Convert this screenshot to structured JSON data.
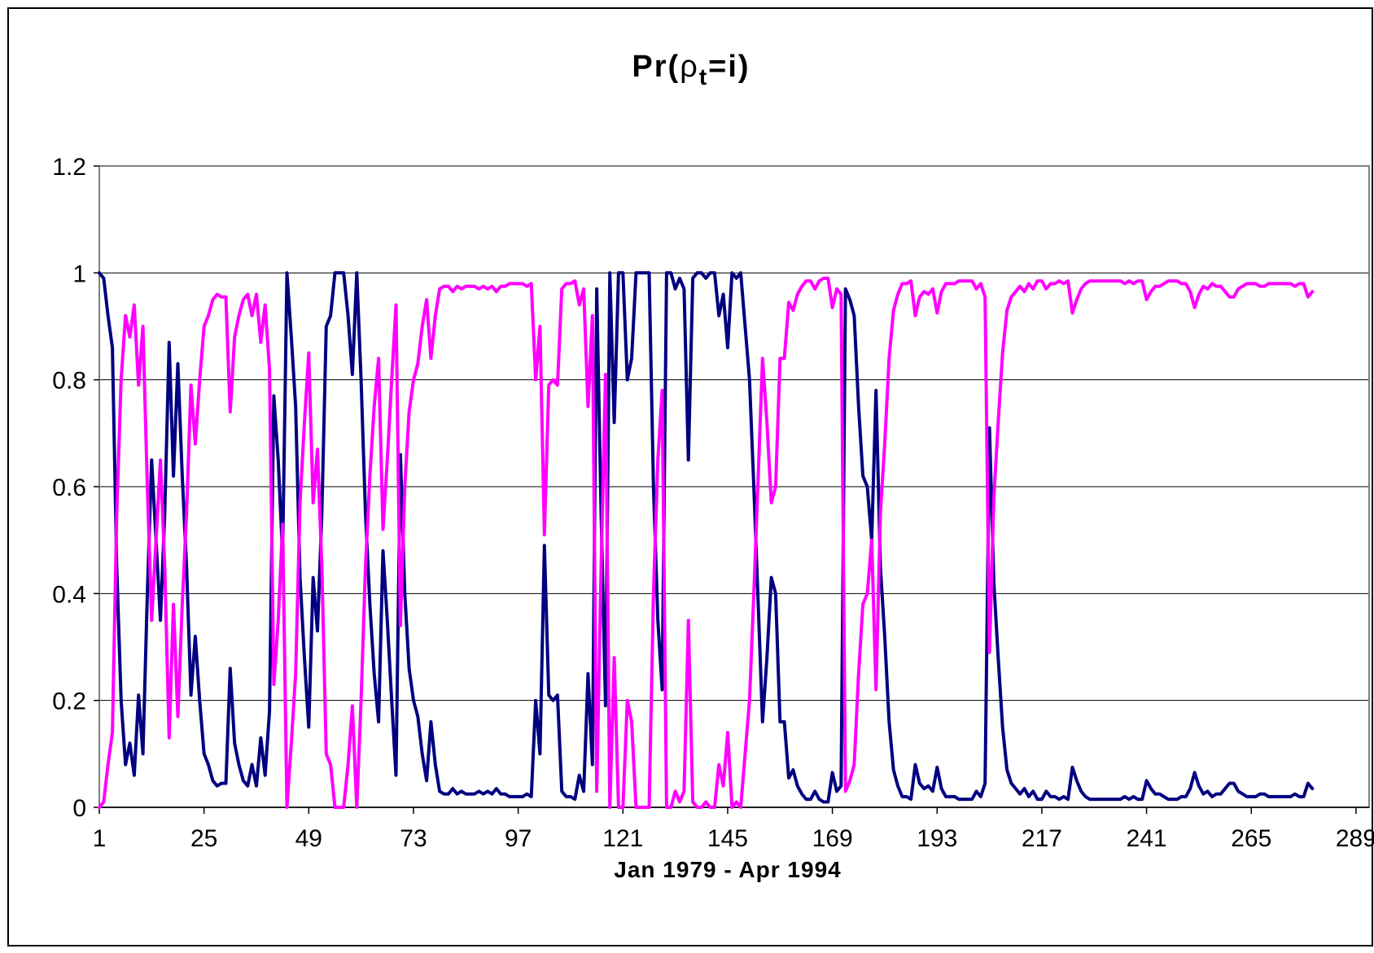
{
  "chart_data": {
    "type": "line",
    "title": {
      "main": "Pr(",
      "greek": "ρ",
      "sub": "t",
      "rest": "=i)"
    },
    "xlabel": "Jan 1979 - Apr 1994",
    "ylabel": "",
    "xlim": [
      1,
      292
    ],
    "ylim": [
      0,
      1.2
    ],
    "x_ticks": [
      1,
      25,
      49,
      73,
      97,
      121,
      145,
      169,
      193,
      217,
      241,
      265,
      289
    ],
    "y_ticks": [
      0,
      0.2,
      0.4,
      0.6,
      0.8,
      1,
      1.2
    ],
    "y_tick_labels": [
      "0",
      "0.2",
      "0.4",
      "0.6",
      "0.8",
      "1",
      "1.2"
    ],
    "grid": {
      "horizontal": true,
      "vertical": false
    },
    "legend": "none",
    "colors": {
      "series_1": "#000080",
      "series_2": "#ff00ff",
      "grid": "#000000",
      "frame": "#000000"
    },
    "x_start": 1,
    "series": [
      {
        "color": "#000080",
        "values": [
          1.0,
          0.99,
          0.92,
          0.86,
          0.45,
          0.2,
          0.08,
          0.12,
          0.06,
          0.21,
          0.1,
          0.4,
          0.65,
          0.5,
          0.35,
          0.55,
          0.87,
          0.62,
          0.83,
          0.62,
          0.45,
          0.21,
          0.32,
          0.2,
          0.1,
          0.08,
          0.05,
          0.04,
          0.045,
          0.045,
          0.26,
          0.12,
          0.08,
          0.05,
          0.04,
          0.08,
          0.04,
          0.13,
          0.06,
          0.18,
          0.77,
          0.65,
          0.47,
          1.0,
          0.88,
          0.75,
          0.43,
          0.28,
          0.15,
          0.43,
          0.33,
          0.55,
          0.9,
          0.92,
          1.0,
          1.0,
          1.0,
          0.92,
          0.81,
          1.0,
          0.8,
          0.55,
          0.38,
          0.25,
          0.16,
          0.48,
          0.35,
          0.2,
          0.06,
          0.66,
          0.4,
          0.26,
          0.2,
          0.17,
          0.1,
          0.05,
          0.16,
          0.08,
          0.03,
          0.025,
          0.025,
          0.035,
          0.025,
          0.03,
          0.025,
          0.025,
          0.025,
          0.03,
          0.025,
          0.03,
          0.025,
          0.035,
          0.025,
          0.025,
          0.02,
          0.02,
          0.02,
          0.02,
          0.025,
          0.02,
          0.2,
          0.1,
          0.49,
          0.21,
          0.2,
          0.21,
          0.03,
          0.02,
          0.02,
          0.015,
          0.06,
          0.03,
          0.25,
          0.08,
          0.97,
          0.55,
          0.19,
          1.0,
          0.72,
          1.0,
          1.0,
          0.8,
          0.84,
          1.0,
          1.0,
          1.0,
          1.0,
          0.6,
          0.35,
          0.22,
          1.0,
          1.0,
          0.97,
          0.99,
          0.97,
          0.65,
          0.99,
          1.0,
          1.0,
          0.99,
          1.0,
          1.0,
          0.92,
          0.96,
          0.86,
          1.0,
          0.99,
          1.0,
          0.9,
          0.8,
          0.6,
          0.38,
          0.16,
          0.28,
          0.43,
          0.4,
          0.16,
          0.16,
          0.055,
          0.07,
          0.04,
          0.025,
          0.015,
          0.015,
          0.03,
          0.015,
          0.01,
          0.01,
          0.065,
          0.03,
          0.04,
          0.97,
          0.95,
          0.92,
          0.75,
          0.62,
          0.6,
          0.5,
          0.78,
          0.45,
          0.32,
          0.16,
          0.07,
          0.04,
          0.02,
          0.02,
          0.015,
          0.08,
          0.045,
          0.035,
          0.04,
          0.03,
          0.075,
          0.035,
          0.02,
          0.02,
          0.02,
          0.015,
          0.015,
          0.015,
          0.015,
          0.03,
          0.02,
          0.045,
          0.71,
          0.42,
          0.28,
          0.15,
          0.07,
          0.045,
          0.035,
          0.025,
          0.035,
          0.02,
          0.03,
          0.015,
          0.015,
          0.03,
          0.02,
          0.02,
          0.015,
          0.02,
          0.015,
          0.075,
          0.05,
          0.03,
          0.02,
          0.015,
          0.015,
          0.015,
          0.015,
          0.015,
          0.015,
          0.015,
          0.015,
          0.02,
          0.015,
          0.02,
          0.015,
          0.015,
          0.05,
          0.035,
          0.025,
          0.025,
          0.02,
          0.015,
          0.015,
          0.015,
          0.02,
          0.02,
          0.035,
          0.065,
          0.04,
          0.025,
          0.03,
          0.02,
          0.025,
          0.025,
          0.035,
          0.045,
          0.045,
          0.03,
          0.025,
          0.02,
          0.02,
          0.02,
          0.025,
          0.025,
          0.02,
          0.02,
          0.02,
          0.02,
          0.02,
          0.02,
          0.025,
          0.02,
          0.02,
          0.045,
          0.035
        ]
      },
      {
        "color": "#ff00ff",
        "values": [
          0.0,
          0.01,
          0.08,
          0.14,
          0.55,
          0.8,
          0.92,
          0.88,
          0.94,
          0.79,
          0.9,
          0.6,
          0.35,
          0.5,
          0.65,
          0.45,
          0.13,
          0.38,
          0.17,
          0.38,
          0.55,
          0.79,
          0.68,
          0.8,
          0.9,
          0.92,
          0.95,
          0.96,
          0.955,
          0.955,
          0.74,
          0.88,
          0.92,
          0.95,
          0.96,
          0.92,
          0.96,
          0.87,
          0.94,
          0.82,
          0.23,
          0.35,
          0.53,
          0.0,
          0.12,
          0.25,
          0.57,
          0.72,
          0.85,
          0.57,
          0.67,
          0.45,
          0.1,
          0.08,
          0.0,
          0.0,
          0.0,
          0.08,
          0.19,
          0.0,
          0.2,
          0.45,
          0.62,
          0.75,
          0.84,
          0.52,
          0.65,
          0.8,
          0.94,
          0.34,
          0.6,
          0.74,
          0.8,
          0.83,
          0.9,
          0.95,
          0.84,
          0.92,
          0.97,
          0.975,
          0.975,
          0.965,
          0.975,
          0.97,
          0.975,
          0.975,
          0.975,
          0.97,
          0.975,
          0.97,
          0.975,
          0.965,
          0.975,
          0.975,
          0.98,
          0.98,
          0.98,
          0.98,
          0.975,
          0.98,
          0.8,
          0.9,
          0.51,
          0.79,
          0.8,
          0.79,
          0.97,
          0.98,
          0.98,
          0.985,
          0.94,
          0.97,
          0.75,
          0.92,
          0.03,
          0.45,
          0.81,
          0.0,
          0.28,
          0.0,
          0.0,
          0.2,
          0.16,
          0.0,
          0.0,
          0.0,
          0.0,
          0.4,
          0.65,
          0.78,
          0.0,
          0.0,
          0.03,
          0.01,
          0.03,
          0.35,
          0.01,
          0.0,
          0.0,
          0.01,
          0.0,
          0.0,
          0.08,
          0.04,
          0.14,
          0.0,
          0.01,
          0.0,
          0.1,
          0.2,
          0.4,
          0.62,
          0.84,
          0.72,
          0.57,
          0.6,
          0.84,
          0.84,
          0.945,
          0.93,
          0.96,
          0.975,
          0.985,
          0.985,
          0.97,
          0.985,
          0.99,
          0.99,
          0.935,
          0.97,
          0.96,
          0.03,
          0.05,
          0.08,
          0.25,
          0.38,
          0.4,
          0.5,
          0.22,
          0.55,
          0.68,
          0.84,
          0.93,
          0.96,
          0.98,
          0.98,
          0.985,
          0.92,
          0.955,
          0.965,
          0.96,
          0.97,
          0.925,
          0.965,
          0.98,
          0.98,
          0.98,
          0.985,
          0.985,
          0.985,
          0.985,
          0.97,
          0.98,
          0.955,
          0.29,
          0.58,
          0.72,
          0.85,
          0.93,
          0.955,
          0.965,
          0.975,
          0.965,
          0.98,
          0.97,
          0.985,
          0.985,
          0.97,
          0.98,
          0.98,
          0.985,
          0.98,
          0.985,
          0.925,
          0.95,
          0.97,
          0.98,
          0.985,
          0.985,
          0.985,
          0.985,
          0.985,
          0.985,
          0.985,
          0.985,
          0.98,
          0.985,
          0.98,
          0.985,
          0.985,
          0.95,
          0.965,
          0.975,
          0.975,
          0.98,
          0.985,
          0.985,
          0.985,
          0.98,
          0.98,
          0.965,
          0.935,
          0.96,
          0.975,
          0.97,
          0.98,
          0.975,
          0.975,
          0.965,
          0.955,
          0.955,
          0.97,
          0.975,
          0.98,
          0.98,
          0.98,
          0.975,
          0.975,
          0.98,
          0.98,
          0.98,
          0.98,
          0.98,
          0.98,
          0.975,
          0.98,
          0.98,
          0.955,
          0.965
        ]
      }
    ]
  }
}
